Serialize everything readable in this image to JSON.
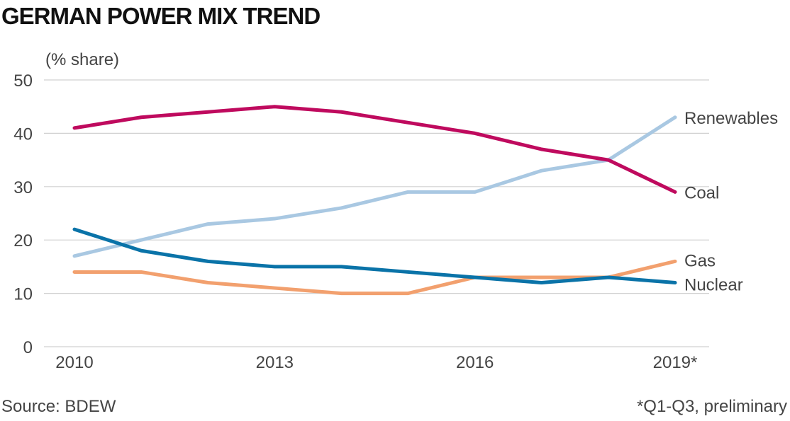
{
  "chart_data": {
    "type": "line",
    "title": "GERMAN POWER MIX TREND",
    "y_label": "(% share)",
    "source": "Source: BDEW",
    "note": "*Q1-Q3, preliminary",
    "x": [
      2010,
      2011,
      2012,
      2013,
      2014,
      2015,
      2016,
      2017,
      2018,
      2019
    ],
    "xlim": [
      2010,
      2019
    ],
    "xticks": [
      2010,
      2013,
      2016,
      {
        "value": 2019,
        "label": "2019*"
      }
    ],
    "ylim": [
      0,
      50
    ],
    "yticks": [
      0,
      10,
      20,
      30,
      40,
      50
    ],
    "grid": true,
    "series": [
      {
        "name": "Renewables",
        "color": "#a9c8e2",
        "values": [
          17,
          20,
          23,
          24,
          26,
          29,
          29,
          33,
          35,
          43
        ]
      },
      {
        "name": "Gas",
        "color": "#f2a06e",
        "values": [
          14,
          14,
          12,
          11,
          10,
          10,
          13,
          13,
          13,
          16
        ]
      },
      {
        "name": "Nuclear",
        "color": "#0a73a8",
        "values": [
          22,
          18,
          16,
          15,
          15,
          14,
          13,
          12,
          13,
          12
        ]
      },
      {
        "name": "Coal",
        "color": "#bf0a5e",
        "values": [
          41,
          43,
          44,
          45,
          44,
          42,
          40,
          37,
          35,
          29
        ]
      }
    ]
  }
}
